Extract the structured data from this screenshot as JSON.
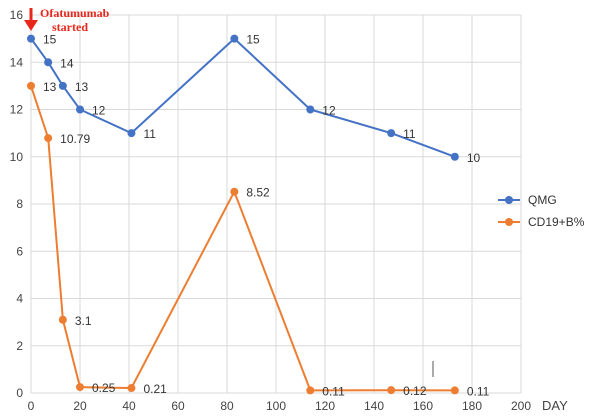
{
  "chart_data": {
    "type": "line",
    "title": "",
    "xlabel": "DAY",
    "ylabel": "",
    "xlim": [
      0,
      200
    ],
    "ylim": [
      0,
      16
    ],
    "xticks": [
      0,
      20,
      40,
      60,
      80,
      100,
      120,
      140,
      160,
      180,
      200
    ],
    "yticks": [
      0,
      2,
      4,
      6,
      8,
      10,
      12,
      14,
      16
    ],
    "grid": true,
    "legend_position": "right",
    "annotation": {
      "lines": [
        "Ofatumumab",
        "started"
      ],
      "x": 0,
      "color": "#e8261b"
    },
    "series": [
      {
        "name": "QMG",
        "color": "#4472c4",
        "x": [
          0,
          7,
          13,
          20,
          41,
          83,
          114,
          147,
          173
        ],
        "y": [
          15,
          14,
          13,
          12,
          11,
          15,
          12,
          11,
          10
        ],
        "labels": [
          "15",
          "14",
          "13",
          "12",
          "11",
          "15",
          "12",
          "11",
          "10"
        ]
      },
      {
        "name": "CD19+B%",
        "color": "#ed7d31",
        "x": [
          0,
          7,
          13,
          20,
          41,
          83,
          114,
          147,
          173
        ],
        "y": [
          13,
          10.79,
          3.1,
          0.25,
          0.21,
          8.52,
          0.11,
          0.12,
          0.11
        ],
        "labels": [
          "13",
          "10.79",
          "3.1",
          "0.25",
          "0.21",
          "8.52",
          "0.11",
          "0.12",
          "0.11"
        ]
      }
    ]
  }
}
